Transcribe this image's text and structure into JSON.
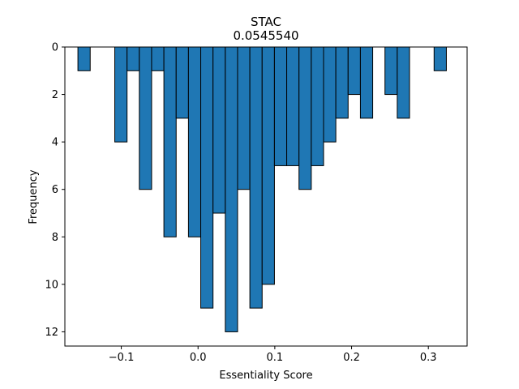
{
  "chart_data": {
    "type": "bar",
    "title": "STAC",
    "subtitle": "0.0545540",
    "xlabel": "Essentiality Score",
    "ylabel": "Frequency",
    "y_inverted": true,
    "ylim": [
      0,
      12.6
    ],
    "xlim": [
      -0.1735,
      0.3505
    ],
    "x_ticks": [
      -0.1,
      0.0,
      0.1,
      0.2,
      0.3
    ],
    "x_tick_labels": [
      "−0.1",
      "0.0",
      "0.1",
      "0.2",
      "0.3"
    ],
    "y_ticks": [
      0,
      2,
      4,
      6,
      8,
      10,
      12
    ],
    "y_tick_labels": [
      "0",
      "2",
      "4",
      "6",
      "8",
      "10",
      "12"
    ],
    "bin_width": 0.016,
    "bin_left_edges": [
      -0.1565,
      -0.1405,
      -0.1245,
      -0.1085,
      -0.0925,
      -0.0765,
      -0.0605,
      -0.0445,
      -0.0285,
      -0.0125,
      0.0035,
      0.0195,
      0.0355,
      0.0515,
      0.0675,
      0.0835,
      0.0995,
      0.1155,
      0.1315,
      0.1475,
      0.1635,
      0.1795,
      0.1955,
      0.2115,
      0.2275,
      0.2435,
      0.2595,
      0.2755,
      0.2915,
      0.3075
    ],
    "values": [
      1,
      0,
      0,
      4,
      1,
      6,
      1,
      8,
      3,
      8,
      11,
      7,
      12,
      6,
      11,
      10,
      5,
      5,
      6,
      5,
      4,
      3,
      2,
      3,
      0,
      2,
      3,
      0,
      0,
      1
    ],
    "bar_color": "#1f77b4",
    "edge_color": "#000000",
    "grid": false,
    "legend": "none"
  }
}
